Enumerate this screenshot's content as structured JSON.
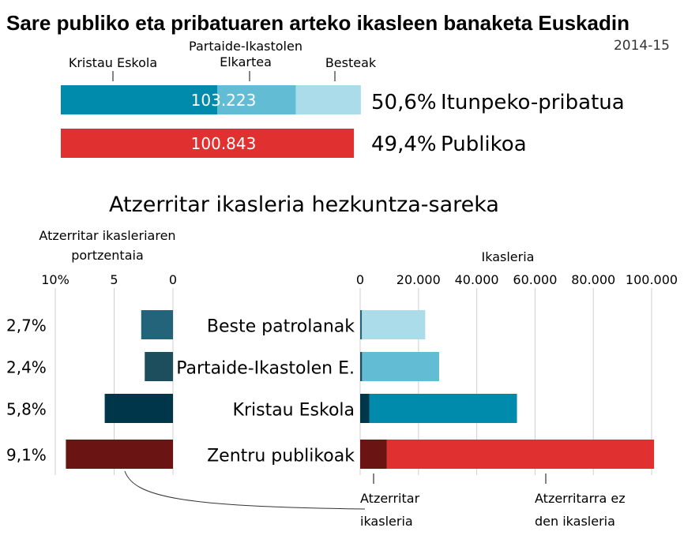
{
  "title": "Sare publiko eta pribatuaren arteko ikasleen banaketa Euskadin",
  "subtitle": "2014-15",
  "top": {
    "segment_labels": [
      "Kristau Eskola",
      "Partaide-Ikastolen",
      "Elkartea",
      "Besteak"
    ],
    "private_total": "103.223",
    "private_pct": "50,6%",
    "private_label": "Itunpeko-pribatua",
    "public_total": "100.843",
    "public_pct": "49,4%",
    "public_label": "Publikoa"
  },
  "section_title": "Atzerritar ikasleria hezkuntza-sareka",
  "left_axis": {
    "title": [
      "Atzerritar ikasleriaren",
      "portzentaia"
    ],
    "ticks": [
      "10%",
      "5",
      "0"
    ]
  },
  "right_axis": {
    "title": "Ikasleria",
    "ticks": [
      "0",
      "20.000",
      "40.000",
      "60.000",
      "80.000",
      "100.000"
    ]
  },
  "notes": {
    "foreign": [
      "Atzerritar",
      "ikasleria"
    ],
    "native": [
      "Atzerritarra ez",
      "den ikasleria"
    ]
  },
  "colors": {
    "kristau": "#008aac",
    "partaide": "#62bdd4",
    "besteak": "#abdcea",
    "public": "#e03030",
    "public_dark": "#6a1414",
    "kristau_dark": "#00364a",
    "partaide_dark": "#1c4e5e",
    "besteak_dark": "#24647a"
  },
  "chart_data": [
    {
      "type": "bar",
      "orientation": "horizontal",
      "stacked": true,
      "categories": [
        "Itunpeko-pribatua",
        "Publikoa"
      ],
      "series": [
        {
          "name": "Kristau Eskola",
          "values": [
            53800,
            0
          ]
        },
        {
          "name": "Partaide-Ikastolen Elkartea",
          "values": [
            27100,
            0
          ]
        },
        {
          "name": "Besteak",
          "values": [
            22323,
            0
          ]
        },
        {
          "name": "Publikoa",
          "values": [
            0,
            100843
          ]
        }
      ],
      "totals": [
        103223,
        100843
      ],
      "shares_pct": [
        50.6,
        49.4
      ]
    },
    {
      "type": "bar",
      "orientation": "horizontal",
      "title": "Atzerritar ikasleria hezkuntza-sareka",
      "categories": [
        "Beste patrolanak",
        "Partaide-Ikastolen E.",
        "Kristau Eskola",
        "Zentru publikoak"
      ],
      "percent_foreign": [
        2.7,
        2.4,
        5.8,
        9.1
      ],
      "percent_labels": [
        "2,7%",
        "2,4%",
        "5,8%",
        "9,1%"
      ],
      "series": [
        {
          "name": "Atzerritar ikasleria",
          "values": [
            603,
            650,
            3120,
            9176
          ]
        },
        {
          "name": "Atzerritarra ez den ikasleria",
          "values": [
            21720,
            26450,
            50680,
            91667
          ]
        }
      ],
      "xlim_percent": [
        0,
        10
      ],
      "xlim_students": [
        0,
        100000
      ]
    }
  ]
}
